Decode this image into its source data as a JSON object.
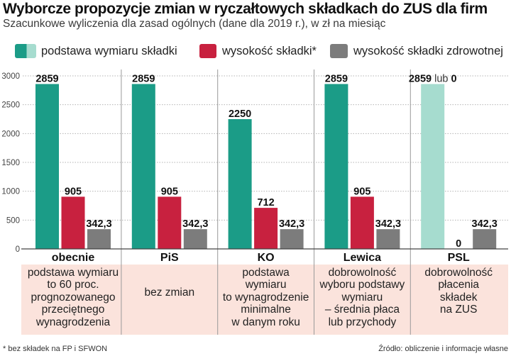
{
  "chart_data": {
    "type": "bar",
    "title": "Wyborcze propozycje zmian w ryczałtowych składkach do ZUS dla firm",
    "subtitle": "Szacunkowe wyliczenia dla zasad ogólnych (dane dla 2019 r.), w zł na miesiąc",
    "ylim": [
      0,
      3000
    ],
    "y_ticks": [
      0,
      500,
      1000,
      1500,
      2000,
      2500,
      3000
    ],
    "grid": true,
    "categories": [
      "obecnie",
      "PiS",
      "KO",
      "Lewica",
      "PSL"
    ],
    "series": [
      {
        "name": "podstawa wymiaru składki",
        "color": "#1b9c87",
        "values": [
          2859,
          2859,
          2250,
          2859,
          2859
        ],
        "labels": [
          "2859",
          "2859",
          "2250",
          "2859",
          "2859"
        ]
      },
      {
        "name": "wysokość składki*",
        "color": "#c8213f",
        "values": [
          905,
          905,
          712,
          905,
          0
        ],
        "labels": [
          "905",
          "905",
          "712",
          "905",
          "0"
        ]
      },
      {
        "name": "wysokość składki zdrowotnej",
        "color": "#7c7c7c",
        "values": [
          342.3,
          342.3,
          342.3,
          342.3,
          342.3
        ],
        "labels": [
          "342,3",
          "342,3",
          "342,3",
          "342,3",
          "342,3"
        ]
      }
    ],
    "alternative_value": {
      "category_index": 4,
      "series_index": 0,
      "color": "#a6dccf",
      "connector": "lub",
      "value": 0,
      "label": "0"
    },
    "category_notes": [
      [
        "podstawa wymiaru",
        "to 60 proc.",
        "prognozowanego",
        "przeciętnego",
        "wynagrodzenia"
      ],
      [
        "bez zmian"
      ],
      [
        "podstawa",
        "wymiaru",
        "to wynagrodzenie",
        "minimalne",
        "w danym roku"
      ],
      [
        "dobrowolność",
        "wyboru podstawy",
        "wymiaru",
        "– średnia płaca",
        "lub przychody"
      ],
      [
        "dobrowolność",
        "płacenia",
        "składek",
        "na ZUS"
      ]
    ]
  },
  "footer": {
    "footnote": "* bez składek na FP i SFWON",
    "source": "Źródło: obliczenie i informacje własne"
  }
}
